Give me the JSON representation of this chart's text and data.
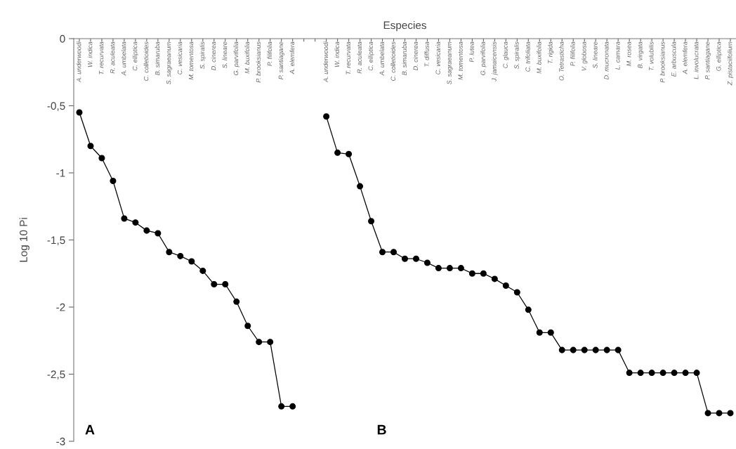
{
  "chart_data": {
    "type": "line",
    "xlabel": "Especies",
    "ylabel": "Log 10 Pi",
    "categories": [
      "A. underwoodi",
      "W. indica",
      "T. recurvata",
      "R. aculeata",
      "A. umbelata",
      "C. elliptica",
      "C. colletioides",
      "B. simaruba",
      "S. sagraeanum",
      "C. vesicaria",
      "M. tomentosa",
      "S. spiralis",
      "D. cinerea",
      "S. lineare",
      "G. parvifolia",
      "M. buxifolia",
      "P. brooksianus",
      "P. filifolia",
      "P. santiagane",
      "A. elemfera",
      null,
      null,
      "A. underwoodi",
      "W. indica",
      "T. recurvata",
      "R. aculeata",
      "C. elliptica",
      "A. umbelata",
      "C. colletioides",
      "B. simaruba",
      "D. cinerea",
      "T. diffusa",
      "C. vesicaria",
      "S. sagraeanum",
      "M. tomentosa",
      "P. lutea",
      "G. parvifolia",
      "J. jamaicensis",
      "C. glauca",
      "S. spiralis",
      "C. trifoliata",
      "M. buxifolia",
      "T. rigida",
      "O. Tetrasticha",
      "P. filifolia",
      "V. globosa",
      "S. lineare",
      "D. mucronata",
      "L. camara",
      "M. rosea",
      "B. virgata",
      "T. volubilis",
      "P. brooksianus",
      "E. arbuscula",
      "A. elemfera",
      "L. involucrata",
      "P. santiagane",
      "G. elliptica",
      "Z. pistaciifolium"
    ],
    "series": [
      {
        "color": "#000000",
        "values": [
          -0.55,
          -0.8,
          -0.89,
          -1.06,
          -1.34,
          -1.37,
          -1.43,
          -1.45,
          -1.59,
          -1.62,
          -1.66,
          -1.73,
          -1.83,
          -1.83,
          -1.96,
          -2.14,
          -2.26,
          -2.26,
          -2.74,
          -2.74,
          null,
          null,
          null,
          null,
          null,
          null,
          null,
          null,
          null,
          null,
          null,
          null,
          null,
          null,
          null,
          null,
          null,
          null,
          null,
          null,
          null,
          null,
          null,
          null,
          null,
          null,
          null,
          null,
          null,
          null,
          null,
          null,
          null,
          null,
          null,
          null,
          null,
          null,
          null
        ]
      },
      {
        "color": "#000000",
        "values": [
          null,
          null,
          null,
          null,
          null,
          null,
          null,
          null,
          null,
          null,
          null,
          null,
          null,
          null,
          null,
          null,
          null,
          null,
          null,
          null,
          null,
          null,
          -0.58,
          -0.85,
          -0.86,
          -1.1,
          -1.36,
          -1.59,
          -1.59,
          -1.64,
          -1.64,
          -1.67,
          -1.71,
          -1.71,
          -1.71,
          -1.75,
          -1.75,
          -1.79,
          -1.84,
          -1.89,
          -2.02,
          -2.19,
          -2.19,
          -2.32,
          -2.32,
          -2.32,
          -2.32,
          -2.32,
          -2.32,
          -2.49,
          -2.49,
          -2.49,
          -2.49,
          -2.49,
          -2.49,
          -2.49,
          -2.79,
          -2.79,
          -2.79
        ]
      }
    ],
    "annotations": [
      "A",
      "B"
    ],
    "ylim": [
      -3,
      0
    ],
    "yticks": [
      0,
      {
        "value": -0.5,
        "label": "-0,5"
      },
      -1,
      {
        "value": -1.5,
        "label": "-1,5"
      },
      -2,
      {
        "value": -2.5,
        "label": "-2,5"
      },
      -3
    ],
    "marker": "circle",
    "line_style": "solid"
  }
}
